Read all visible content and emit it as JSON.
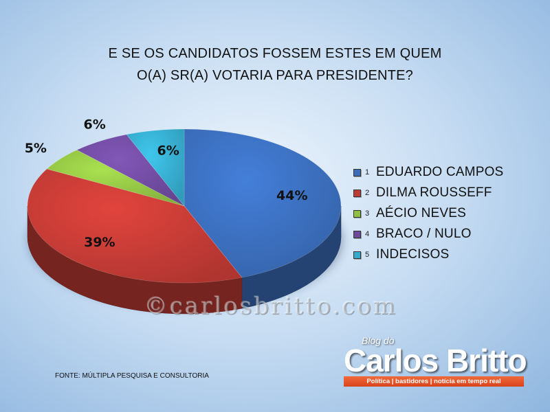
{
  "chart_data": {
    "type": "pie",
    "title_lines": [
      "E SE OS CANDIDATOS FOSSEM ESTES EM QUEM",
      "O(A) SR(A) VOTARIA PARA PRESIDENTE?"
    ],
    "slices": [
      {
        "index": "1",
        "label": "EDUARDO CAMPOS",
        "value": 44,
        "display": "44%",
        "color": "#3a6cb8"
      },
      {
        "index": "2",
        "label": "DILMA ROUSSEFF",
        "value": 39,
        "display": "39%",
        "color": "#bf3a34"
      },
      {
        "index": "3",
        "label": "AÉCIO NEVES",
        "value": 5,
        "display": "5%",
        "color": "#8fbf43"
      },
      {
        "index": "4",
        "label": "BRACO / NULO",
        "value": 6,
        "display": "6%",
        "color": "#6e4a9c"
      },
      {
        "index": "5",
        "label": "INDECISOS",
        "value": 6,
        "display": "6%",
        "color": "#35a9c9"
      }
    ],
    "legend_position": "right",
    "style": "3d-pie"
  },
  "watermark": "©carlosbritto.com",
  "source": "FONTE: MÚLTIPLA PESQUISA E CONSULTORIA",
  "logo": {
    "small": "Blog do",
    "big": "Carlos Britto",
    "tagline": "Política | bastidores | notícia em tempo real"
  }
}
